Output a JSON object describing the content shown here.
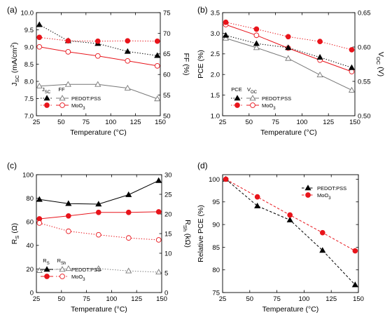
{
  "chart_data": [
    {
      "panel": "(a)",
      "type": "line",
      "xlabel": "Temperature (°C)",
      "ylabel_left": "J_SC (mA/cm^2)",
      "ylabel_right": "FF (%)",
      "xlim": [
        25,
        150
      ],
      "xticks": [
        25,
        50,
        75,
        100,
        125,
        150
      ],
      "ylim_left": [
        7.0,
        10.0
      ],
      "yticks_left": [
        "7.0",
        "7.5",
        "8.0",
        "8.5",
        "9.0",
        "9.5",
        "10.0"
      ],
      "ylim_right": [
        50,
        75
      ],
      "yticks_right": [
        "50",
        "55",
        "60",
        "65",
        "70",
        "75"
      ],
      "x": [
        28,
        57,
        87,
        117,
        147
      ],
      "legend_headers": [
        "J_SC",
        "FF"
      ],
      "legend_labels": [
        "PEDOT:PSS",
        "MoO_3"
      ],
      "series": [
        {
          "metric": "JSC",
          "material": "PEDOT:PSS",
          "axis": "left",
          "color": "#000000",
          "marker": "filled-triangle",
          "line": "dotted",
          "values": [
            9.65,
            9.18,
            9.1,
            8.87,
            8.75
          ]
        },
        {
          "metric": "JSC",
          "material": "MoO3",
          "axis": "left",
          "color": "#e8141b",
          "marker": "filled-circle",
          "line": "dotted",
          "values": [
            9.28,
            9.18,
            9.17,
            9.18,
            9.17
          ]
        },
        {
          "metric": "FF",
          "material": "PEDOT:PSS",
          "axis": "right",
          "color": "#777777",
          "marker": "open-triangle",
          "line": "solid",
          "values": [
            57.2,
            57.6,
            57.6,
            56.7,
            54.1
          ]
        },
        {
          "metric": "FF",
          "material": "MoO3",
          "axis": "right",
          "color": "#e8141b",
          "marker": "open-circle",
          "line": "solid",
          "values": [
            66.7,
            65.5,
            64.5,
            63.3,
            62.1
          ]
        }
      ]
    },
    {
      "panel": "(b)",
      "type": "line",
      "xlabel": "Temperature (°C)",
      "ylabel_left": "PCE (%)",
      "ylabel_right": "V_OC (V)",
      "xlim": [
        25,
        150
      ],
      "xticks": [
        25,
        50,
        75,
        100,
        125,
        150
      ],
      "ylim_left": [
        1.0,
        3.5
      ],
      "yticks_left": [
        "1.0",
        "1.5",
        "2.0",
        "2.5",
        "3.0",
        "3.5"
      ],
      "ylim_right": [
        0.5,
        0.65
      ],
      "yticks_right": [
        "0.50",
        "0.55",
        "0.60",
        "0.65"
      ],
      "x": [
        28,
        57,
        87,
        117,
        147
      ],
      "legend_headers": [
        "PCE",
        "V_OC"
      ],
      "legend_labels": [
        "PEDOT:PSS",
        "MoO_3"
      ],
      "series": [
        {
          "metric": "PCE",
          "material": "PEDOT:PSS",
          "axis": "left",
          "color": "#777777",
          "marker": "open-triangle",
          "line": "solid",
          "values": [
            2.88,
            2.65,
            2.39,
            1.99,
            1.62
          ]
        },
        {
          "metric": "PCE",
          "material": "MoO3",
          "axis": "left",
          "color": "#e8141b",
          "marker": "open-circle",
          "line": "solid",
          "values": [
            3.21,
            2.95,
            2.64,
            2.35,
            2.07
          ]
        },
        {
          "metric": "VOC",
          "material": "PEDOT:PSS",
          "axis": "right",
          "color": "#000000",
          "marker": "filled-triangle",
          "line": "dotted",
          "values": [
            0.617,
            0.605,
            0.599,
            0.585,
            0.57
          ]
        },
        {
          "metric": "VOC",
          "material": "MoO3",
          "axis": "right",
          "color": "#e8141b",
          "marker": "filled-circle",
          "line": "dotted",
          "values": [
            0.636,
            0.626,
            0.615,
            0.608,
            0.596
          ]
        }
      ]
    },
    {
      "panel": "(c)",
      "type": "line",
      "xlabel": "Temperature (°C)",
      "ylabel_left": "R_S (Ω)",
      "ylabel_right": "R_Sh (kΩ)",
      "xlim": [
        25,
        150
      ],
      "xticks": [
        25,
        50,
        75,
        100,
        125,
        150
      ],
      "ylim_left": [
        0,
        100
      ],
      "yticks_left": [
        "0",
        "20",
        "40",
        "60",
        "80",
        "100"
      ],
      "ylim_right": [
        0,
        30
      ],
      "yticks_right": [
        "0",
        "5",
        "10",
        "15",
        "20",
        "25",
        "30"
      ],
      "x": [
        28,
        57,
        87,
        117,
        147
      ],
      "legend_headers": [
        "R_S",
        "R_Sh"
      ],
      "legend_labels": [
        "PEDOT:PSS",
        "MoO_3"
      ],
      "series": [
        {
          "metric": "RS",
          "material": "PEDOT:PSS",
          "axis": "left",
          "color": "#000000",
          "marker": "filled-triangle",
          "line": "solid",
          "values": [
            79,
            75.5,
            75,
            83,
            95
          ]
        },
        {
          "metric": "RS",
          "material": "MoO3",
          "axis": "left",
          "color": "#e8141b",
          "marker": "filled-circle",
          "line": "solid",
          "values": [
            62.5,
            65,
            68,
            68,
            68.5
          ]
        },
        {
          "metric": "RSh",
          "material": "PEDOT:PSS",
          "axis": "right",
          "color": "#777777",
          "marker": "open-triangle",
          "line": "dotted",
          "values": [
            5.6,
            6.1,
            6.1,
            5.5,
            5.2
          ]
        },
        {
          "metric": "RSh",
          "material": "MoO3",
          "axis": "right",
          "color": "#e8141b",
          "marker": "open-circle",
          "line": "dotted",
          "values": [
            17.7,
            15.6,
            14.7,
            13.9,
            13.4
          ]
        }
      ]
    },
    {
      "panel": "(d)",
      "type": "line",
      "xlabel": "Temperature (°C)",
      "ylabel_left": "Relative PCE (%)",
      "xlim": [
        25,
        150
      ],
      "xticks": [
        25,
        50,
        75,
        100,
        125,
        150
      ],
      "ylim_left": [
        75,
        101
      ],
      "yticks_left": [
        "75",
        "80",
        "85",
        "90",
        "95",
        "100"
      ],
      "x": [
        28,
        57,
        87,
        117,
        147
      ],
      "legend_labels": [
        "PEDOT:PSS",
        "MoO_3"
      ],
      "series": [
        {
          "material": "PEDOT:PSS",
          "axis": "left",
          "color": "#000000",
          "marker": "filled-triangle",
          "line": "dashed",
          "values": [
            100,
            94.1,
            91.0,
            84.3,
            76.7
          ]
        },
        {
          "material": "MoO3",
          "axis": "left",
          "color": "#e8141b",
          "marker": "filled-circle",
          "line": "dashed",
          "values": [
            100,
            96.1,
            92.1,
            88.2,
            84.2
          ]
        }
      ]
    }
  ]
}
